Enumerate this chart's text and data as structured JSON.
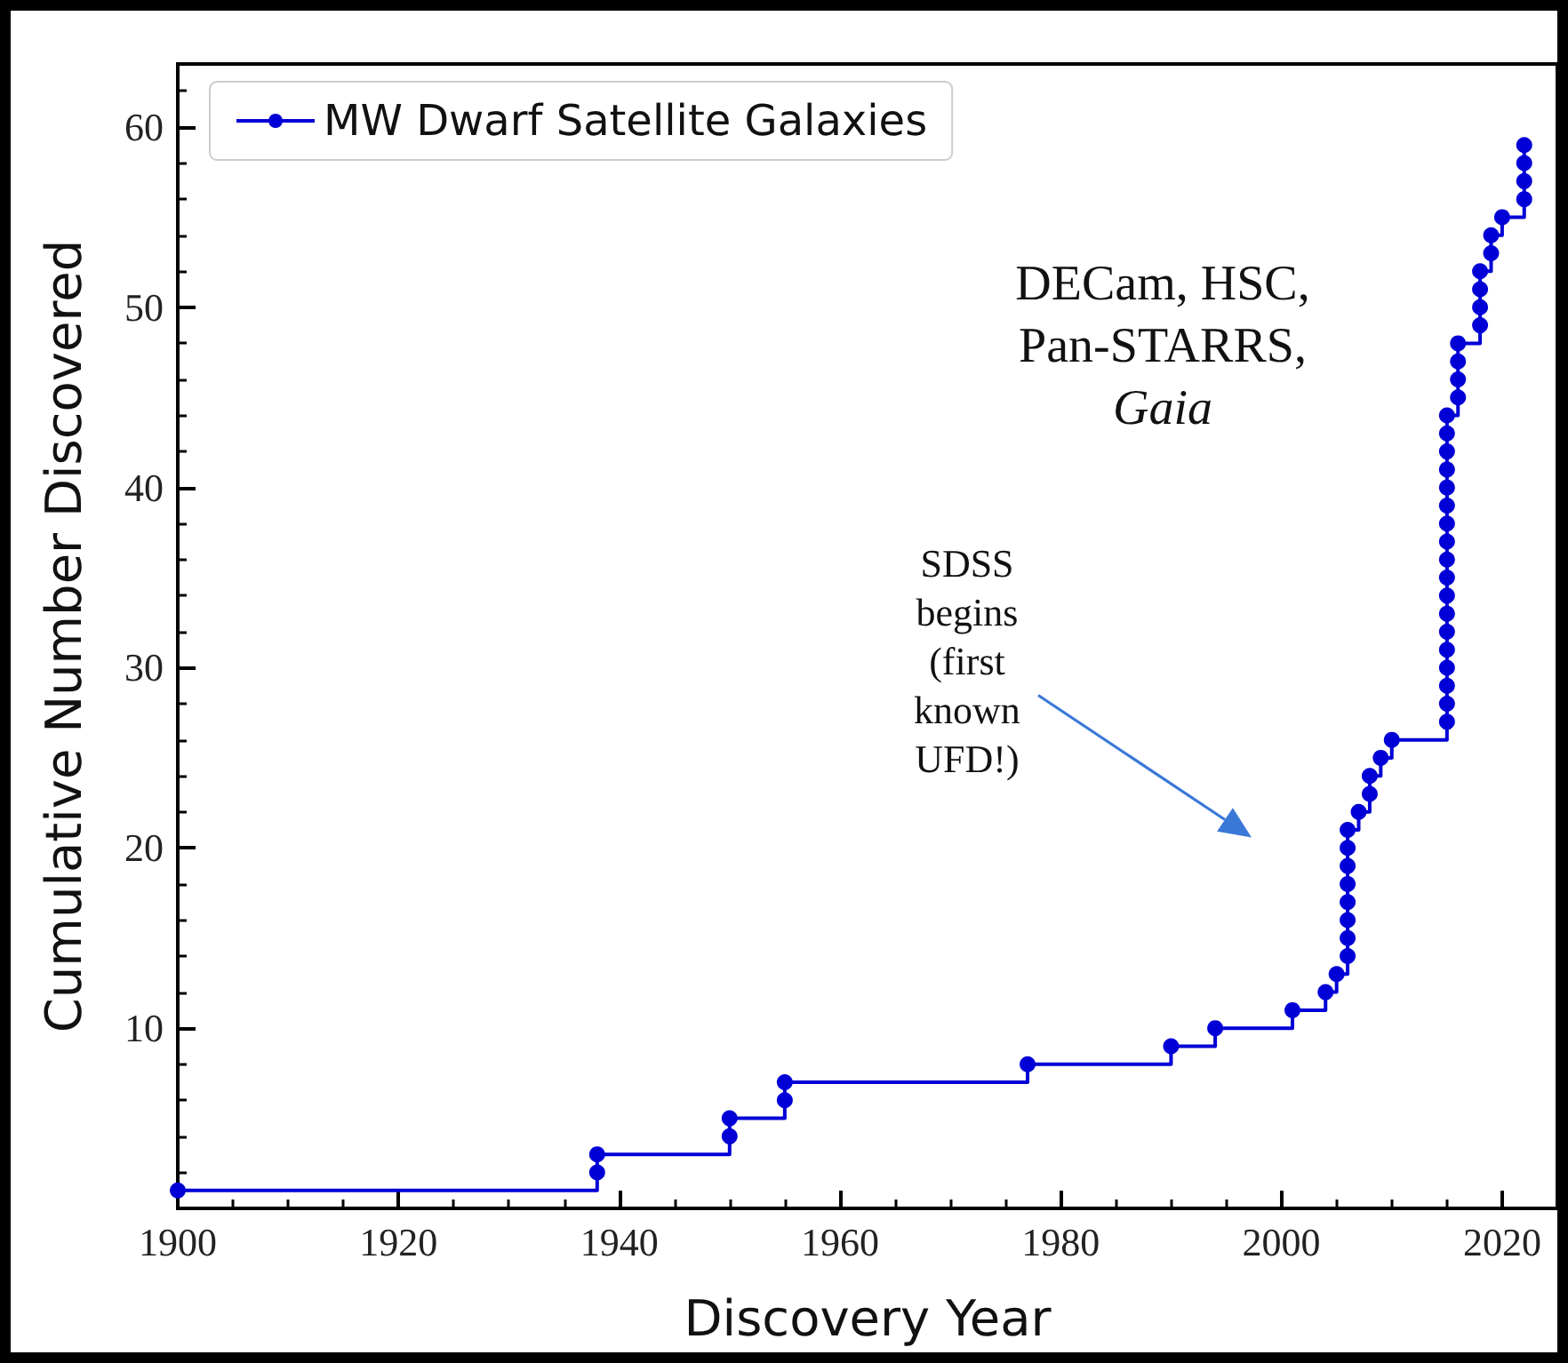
{
  "chart_data": {
    "type": "step",
    "x": [
      1900,
      1938,
      1938,
      1950,
      1950,
      1955,
      1955,
      1977,
      1990,
      1994,
      2001,
      2004,
      2005,
      2006,
      2006,
      2006,
      2006,
      2006,
      2006,
      2006,
      2006,
      2007,
      2008,
      2008,
      2009,
      2010,
      2015,
      2015,
      2015,
      2015,
      2015,
      2015,
      2015,
      2015,
      2015,
      2015,
      2015,
      2015,
      2015,
      2015,
      2015,
      2015,
      2015,
      2015,
      2016,
      2016,
      2016,
      2016,
      2018,
      2018,
      2018,
      2018,
      2019,
      2019,
      2020,
      2022,
      2022,
      2022,
      2022
    ],
    "series": [
      {
        "name": "MW Dwarf Satellite Galaxies",
        "color": "#0000d6",
        "values": [
          1,
          2,
          3,
          4,
          5,
          6,
          7,
          8,
          9,
          10,
          11,
          12,
          13,
          14,
          15,
          16,
          17,
          18,
          19,
          20,
          21,
          22,
          23,
          24,
          25,
          26,
          27,
          28,
          29,
          30,
          31,
          32,
          33,
          34,
          35,
          36,
          37,
          38,
          39,
          40,
          41,
          42,
          43,
          44,
          45,
          46,
          47,
          48,
          49,
          50,
          51,
          52,
          53,
          54,
          55,
          56,
          57,
          58,
          59
        ]
      }
    ],
    "xlabel": "Discovery Year",
    "ylabel": "Cumulative Number Discovered",
    "xlim": [
      1900,
      2025
    ],
    "xticks": [
      1900,
      1920,
      1940,
      1960,
      1980,
      2000,
      2020
    ],
    "ylim": [
      0,
      63.5
    ],
    "yticks": [
      10,
      20,
      30,
      40,
      50,
      60
    ],
    "marker": "circle",
    "line_style": "solid",
    "grid": false,
    "legend": "top left",
    "annotations": [
      "DECam, HSC,\nPan-STARRS,\nGaia",
      "SDSS\nbegins\n(first\nknown\nUFD!)"
    ]
  }
}
